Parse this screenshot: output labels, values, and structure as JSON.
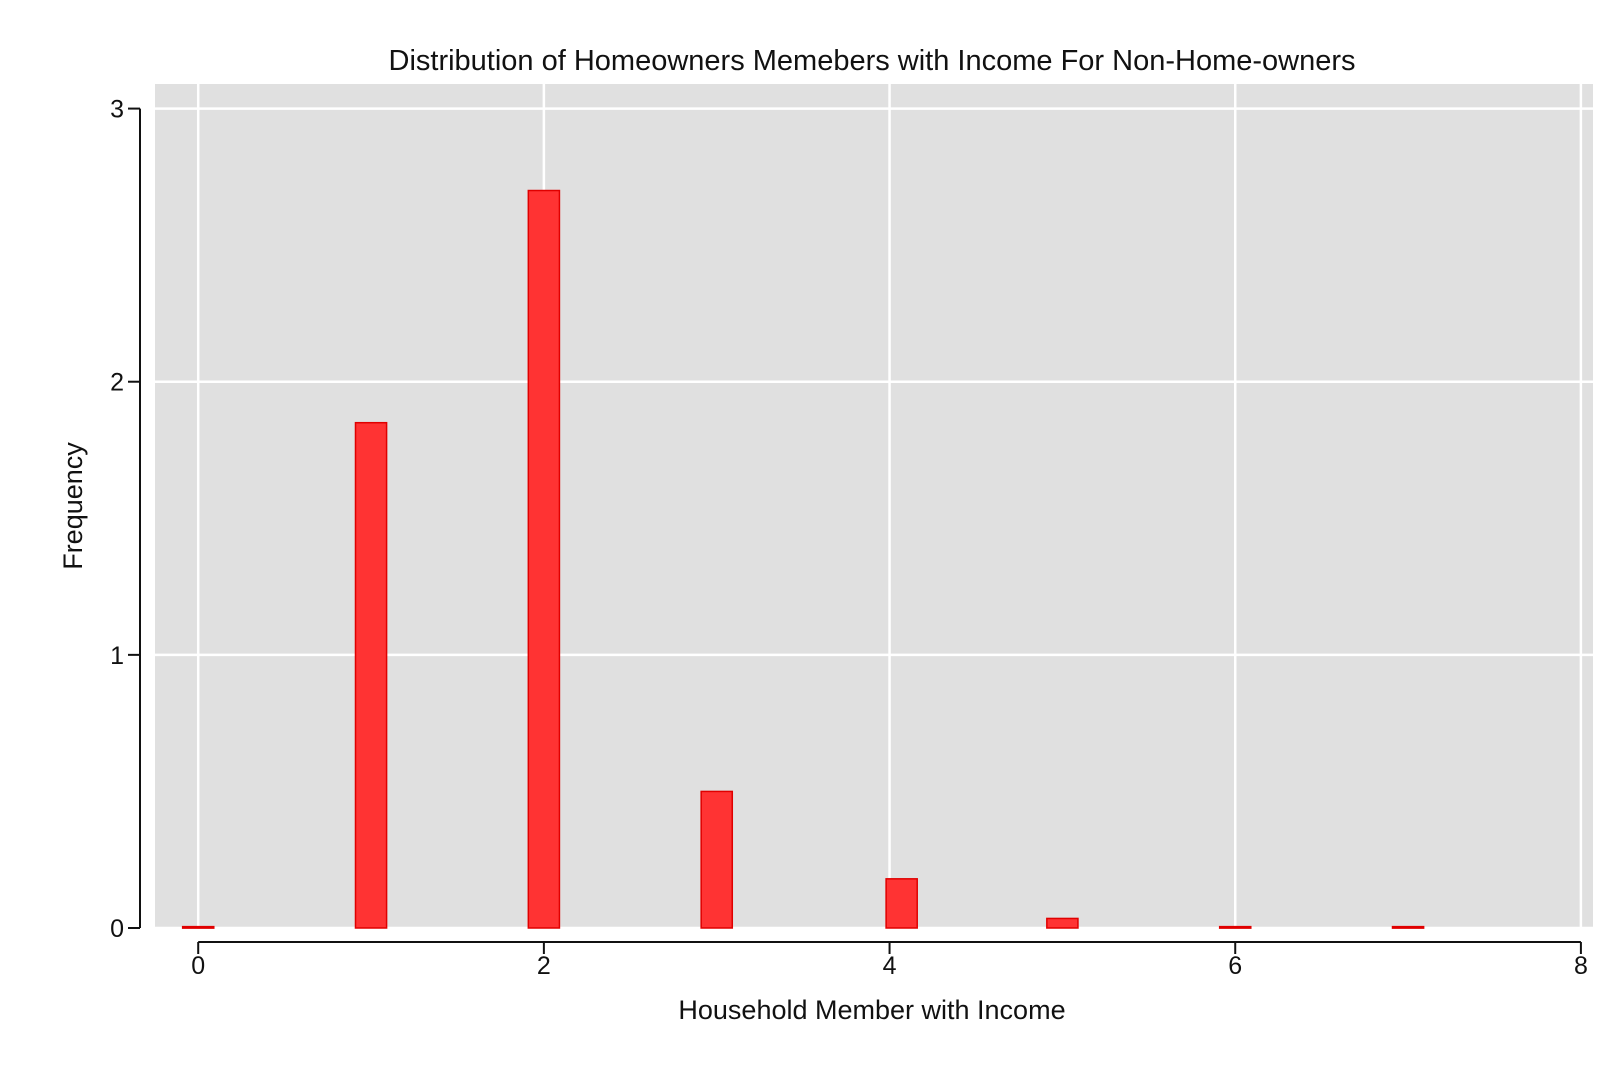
{
  "chart_data": {
    "type": "bar",
    "title": "Distribution of Homeowners Memebers with Income For Non-Home-owners",
    "xlabel": "Household Member with Income",
    "ylabel": "Frequency",
    "xlim": [
      -0.25,
      8.07
    ],
    "ylim": [
      0,
      3.09
    ],
    "xticks": [
      0,
      2,
      4,
      6,
      8
    ],
    "yticks": [
      0,
      1,
      2,
      3
    ],
    "grid": true,
    "bin_width": 0.18,
    "bars": [
      {
        "x": 0,
        "y": 0.005
      },
      {
        "x": 1,
        "y": 1.85
      },
      {
        "x": 2,
        "y": 2.7
      },
      {
        "x": 3,
        "y": 0.5
      },
      {
        "x": 4.07,
        "y": 0.18
      },
      {
        "x": 5,
        "y": 0.035
      },
      {
        "x": 6,
        "y": 0.005
      },
      {
        "x": 7,
        "y": 0.005
      }
    ],
    "colors": {
      "bar_fill": "#ff3333",
      "bar_stroke": "#e00000",
      "panel_bg": "#e0e0e0",
      "grid": "#ffffff"
    }
  }
}
